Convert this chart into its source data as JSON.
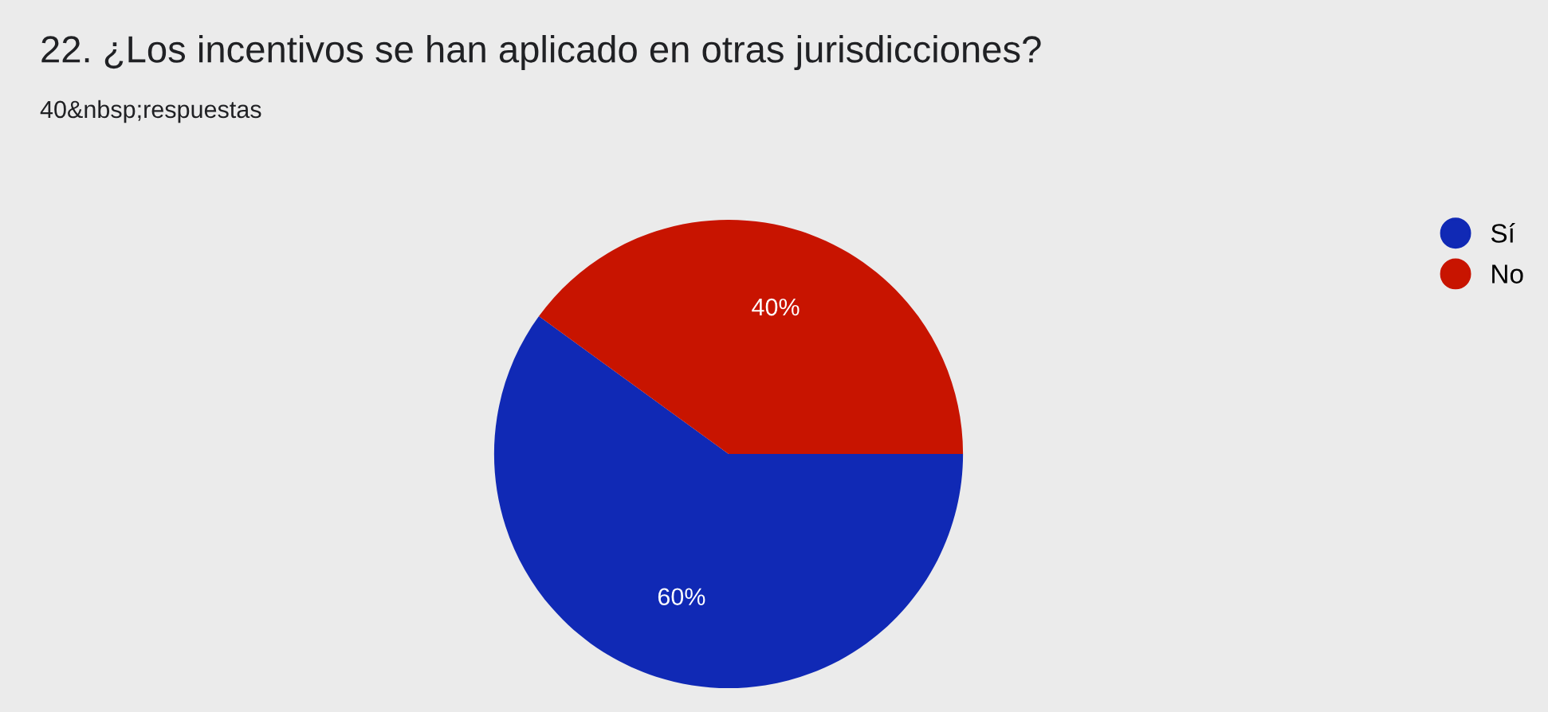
{
  "chart_data": {
    "type": "pie",
    "title": "22. ¿Los incentivos se han aplicado en otras jurisdicciones?",
    "subtitle": "40&nbsp;respuestas",
    "categories": [
      "Sí",
      "No"
    ],
    "values": [
      60,
      40
    ],
    "colors": [
      "#1029b5",
      "#c81400"
    ],
    "value_labels": [
      "60%",
      "40%"
    ],
    "legend": "top right"
  }
}
